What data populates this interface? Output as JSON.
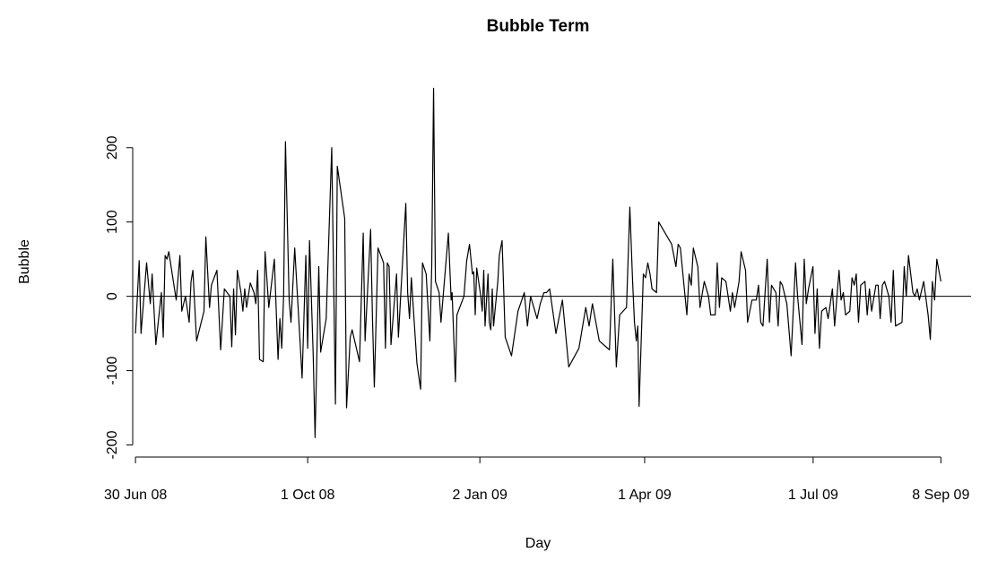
{
  "chart_data": {
    "type": "line",
    "title": "Bubble Term",
    "xlabel": "Day",
    "ylabel": "Bubble",
    "x": [
      0,
      2,
      3,
      6,
      8,
      9,
      11,
      14,
      15,
      16,
      17,
      18,
      22,
      24,
      25,
      27,
      29,
      30,
      31,
      33,
      37,
      38,
      40,
      41,
      44,
      46,
      48,
      51,
      52,
      53,
      54,
      55,
      57,
      58,
      59,
      60,
      62,
      64,
      65,
      66,
      67,
      69,
      70,
      72,
      75,
      77,
      78,
      79,
      80,
      81,
      83,
      84,
      86,
      90,
      92,
      93,
      94,
      96,
      97,
      99,
      100,
      103,
      106,
      108,
      109,
      113,
      114,
      116,
      117,
      121,
      123,
      124,
      127,
      128,
      129,
      131,
      134,
      135,
      136,
      137,
      138,
      141,
      142,
      143,
      146,
      147,
      148,
      149,
      152,
      154,
      155,
      157,
      159,
      160,
      161,
      162,
      164,
      165,
      169,
      170.5,
      171,
      172.8,
      173.6,
      177.4,
      178.9,
      180.4,
      182,
      182.7,
      183.5,
      184.3,
      186.5,
      187.3,
      188.1,
      188.8,
      189.6,
      190.4,
      191.1,
      191.9,
      192.7,
      193.4,
      195.7,
      196.5,
      198,
      199.7,
      203.1,
      206.6,
      210,
      211.7,
      213.4,
      216.9,
      218.6,
      220.6,
      222,
      223.7,
      227.1,
      230.6,
      234,
      239.5,
      243.2,
      245,
      246.8,
      250.5,
      256,
      257.8,
      259.7,
      261.5,
      265.2,
      267,
      268.5,
      269.5,
      270.5,
      271.3,
      272,
      274.3,
      275.5,
      276.7,
      277.9,
      279,
      281.4,
      282.6,
      286.1,
      289.6,
      291.9,
      293.1,
      294.3,
      297.8,
      299,
      300.2,
      301.3,
      303.7,
      304.9,
      307.2,
      309.5,
      310.7,
      313.1,
      314.2,
      315.4,
      316.6,
      318.9,
      321.3,
      322.4,
      323.6,
      326,
      327.1,
      329.5,
      330.6,
      333,
      335.3,
      336.5,
      337.7,
      338.9,
      341.2,
      342.4,
      343.5,
      345.9,
      347.1,
      348.2,
      349.4,
      351.8,
      354.1,
      356.5,
      357.6,
      360,
      361.2,
      362.3,
      363.5,
      365.9,
      367,
      368.2,
      369.4,
      370.6,
      372.9,
      374.1,
      376.4,
      377.6,
      380,
      381.1,
      382.3,
      383.5,
      385.8,
      387,
      388.2,
      389.3,
      390.5,
      391.7,
      394,
      395.2,
      396.4,
      397.6,
      399.9,
      401.1,
      402.2,
      403.4,
      404.6,
      406.9,
      408.1,
      409.3,
      410.5,
      414,
      415.2,
      416.3,
      417.5,
      419.9,
      421,
      422.2,
      423.4,
      425.7,
      428.1,
      429.3,
      430.4,
      431.6,
      432.8,
      435
    ],
    "values": [
      -50,
      48,
      -50,
      45,
      -10,
      30,
      -65,
      5,
      -55,
      55,
      50,
      60,
      -5,
      55,
      -20,
      0,
      -35,
      20,
      35,
      -60,
      -20,
      80,
      -15,
      15,
      35,
      -72,
      10,
      0,
      -68,
      10,
      -52,
      35,
      5,
      -20,
      10,
      -15,
      18,
      5,
      -10,
      35,
      -85,
      -88,
      60,
      -15,
      50,
      -85,
      -30,
      -70,
      0,
      208,
      -5,
      -35,
      65,
      -110,
      55,
      -70,
      75,
      -80,
      -190,
      40,
      -75,
      -30,
      200,
      -145,
      175,
      105,
      -150,
      -55,
      -45,
      -88,
      85,
      -60,
      90,
      -30,
      -122,
      65,
      45,
      -70,
      45,
      40,
      -65,
      30,
      -55,
      -10,
      125,
      5,
      -30,
      25,
      -90,
      -125,
      45,
      30,
      -60,
      40,
      280,
      20,
      5,
      -35,
      85,
      -5,
      5,
      -115,
      -25,
      0,
      48,
      70,
      30,
      33,
      -25,
      38,
      0,
      -20,
      35,
      -40,
      -5,
      30,
      -35,
      -45,
      10,
      -40,
      20,
      55,
      75,
      -55,
      -80,
      -20,
      5,
      -40,
      0,
      -30,
      -10,
      5,
      5,
      10,
      -50,
      -5,
      -95,
      -70,
      -15,
      -40,
      -10,
      -60,
      -72,
      50,
      -95,
      -25,
      -15,
      120,
      20,
      -35,
      -60,
      -40,
      -148,
      30,
      25,
      45,
      30,
      10,
      5,
      100,
      85,
      70,
      40,
      70,
      65,
      -25,
      30,
      15,
      65,
      40,
      -15,
      20,
      0,
      -25,
      -25,
      45,
      -15,
      25,
      20,
      -20,
      5,
      -15,
      20,
      60,
      35,
      -35,
      -5,
      -5,
      15,
      -35,
      -40,
      50,
      -35,
      15,
      5,
      -40,
      20,
      15,
      -10,
      -80,
      45,
      0,
      -65,
      50,
      -10,
      10,
      40,
      -50,
      10,
      -70,
      -20,
      -15,
      -30,
      10,
      -40,
      35,
      -5,
      5,
      -25,
      -20,
      25,
      15,
      30,
      -35,
      15,
      20,
      -25,
      10,
      -20,
      15,
      15,
      -30,
      15,
      20,
      0,
      -35,
      35,
      -40,
      -35,
      40,
      0,
      55,
      5,
      0,
      10,
      -5,
      20,
      -25,
      -58,
      20,
      -5,
      50,
      20
    ],
    "color": "#000000",
    "reference_line": 0,
    "xlim": [
      -1.5,
      451.3
    ],
    "ylim": [
      -209,
      301
    ],
    "xticks": [
      {
        "value": 0,
        "label": "30 Jun 08"
      },
      {
        "value": 93,
        "label": "1 Oct 08"
      },
      {
        "value": 186,
        "label": "2 Jan 09"
      },
      {
        "value": 275,
        "label": "1 Apr 09"
      },
      {
        "value": 366,
        "label": "1 Jul 09"
      },
      {
        "value": 435,
        "label": "8 Sep 09"
      }
    ],
    "yticks": [
      {
        "value": -200,
        "label": "-200"
      },
      -100,
      0,
      100,
      200
    ]
  }
}
